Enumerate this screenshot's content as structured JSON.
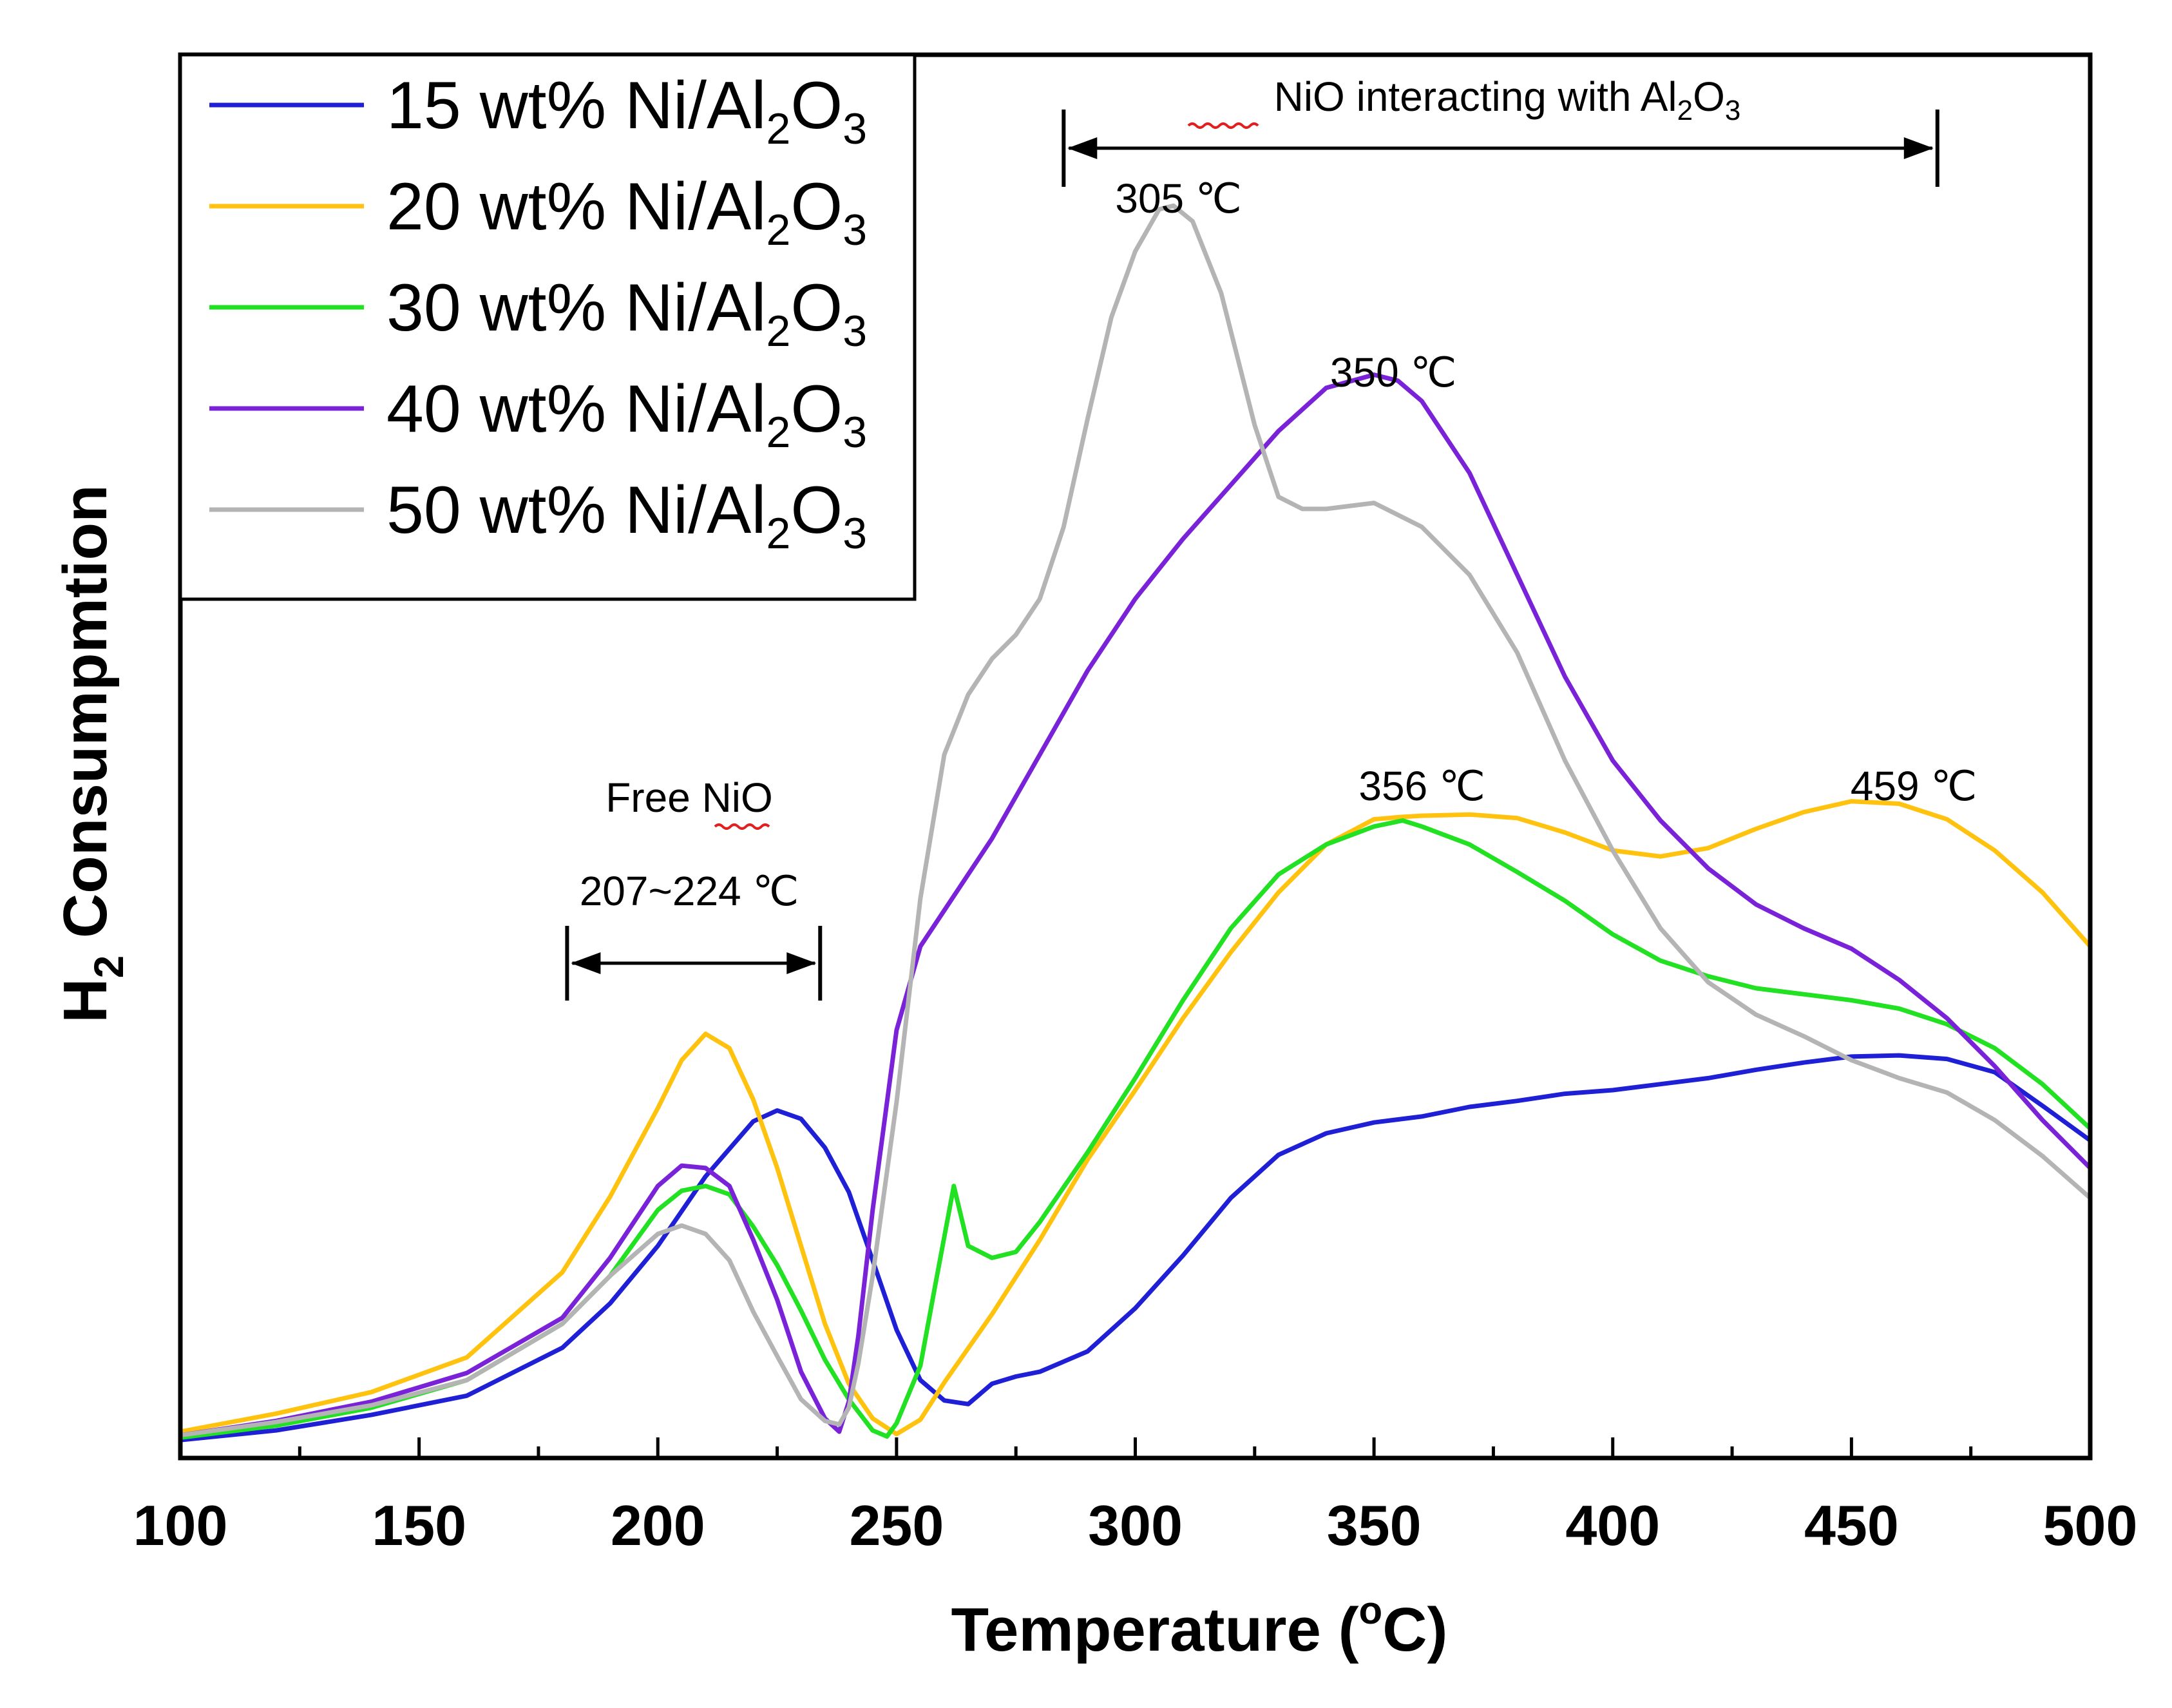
{
  "chart_data": {
    "type": "line",
    "title": "",
    "xlabel": "Temperature (°C)",
    "xlabel_parts": {
      "main": "Temperature (",
      "sup": "o",
      "tail": "C)"
    },
    "ylabel": "H2 Consumpmtion",
    "ylabel_parts": {
      "main_pre": "H",
      "sub": "2",
      "main_post": " Consumpmtion"
    },
    "xlim": [
      100,
      500
    ],
    "ylim": [
      0,
      100
    ],
    "y_ticks_shown": false,
    "x_ticks": [
      100,
      150,
      200,
      250,
      300,
      350,
      400,
      450,
      500
    ],
    "x_tick_labels": [
      "100",
      "150",
      "200",
      "250",
      "300",
      "350",
      "400",
      "450",
      "500"
    ],
    "grid": false,
    "legend_position": "top-left",
    "series": [
      {
        "name": "15 wt% Ni/Al2O3",
        "label_main": "15 wt% Ni/Al",
        "label_sub1": "2",
        "label_o": "O",
        "label_sub2": "3",
        "color": "#1f1fd6",
        "x": [
          100,
          120,
          140,
          160,
          180,
          190,
          200,
          210,
          220,
          225,
          230,
          235,
          240,
          245,
          250,
          255,
          260,
          265,
          270,
          275,
          280,
          290,
          300,
          310,
          320,
          330,
          340,
          350,
          360,
          370,
          380,
          390,
          400,
          410,
          420,
          430,
          440,
          450,
          460,
          470,
          480,
          490,
          500
        ],
        "y": [
          0.8,
          1.6,
          2.9,
          4.5,
          8.5,
          12.2,
          17.0,
          22.8,
          27.4,
          28.3,
          27.6,
          25.2,
          21.5,
          15.8,
          10.0,
          5.8,
          4.1,
          3.8,
          5.5,
          6.1,
          6.5,
          8.2,
          11.8,
          16.2,
          21.0,
          24.6,
          26.4,
          27.3,
          27.8,
          28.6,
          29.1,
          29.7,
          30.0,
          30.5,
          31.0,
          31.7,
          32.3,
          32.8,
          32.9,
          32.6,
          31.5,
          28.7,
          25.8
        ]
      },
      {
        "name": "20 wt% Ni/Al2O3",
        "label_main": "20 wt% Ni/Al",
        "label_sub1": "2",
        "label_o": "O",
        "label_sub2": "3",
        "color": "#ffc20e",
        "x": [
          100,
          120,
          140,
          160,
          180,
          190,
          200,
          205,
          210,
          215,
          220,
          225,
          230,
          235,
          240,
          245,
          250,
          255,
          260,
          270,
          280,
          290,
          300,
          310,
          320,
          330,
          340,
          350,
          356,
          360,
          370,
          380,
          390,
          400,
          410,
          420,
          430,
          440,
          450,
          460,
          470,
          480,
          490,
          500
        ],
        "y": [
          1.5,
          3.0,
          4.8,
          7.7,
          14.8,
          21.1,
          28.5,
          32.5,
          34.7,
          33.5,
          29.2,
          23.5,
          17.0,
          10.5,
          5.5,
          2.6,
          1.3,
          2.5,
          5.6,
          11.3,
          17.5,
          24.2,
          30.0,
          36.0,
          41.5,
          46.5,
          50.5,
          52.6,
          52.8,
          52.9,
          53.0,
          52.7,
          51.5,
          50.0,
          49.5,
          50.2,
          51.8,
          53.2,
          54.1,
          53.9,
          52.6,
          50.0,
          46.5,
          42.0
        ]
      },
      {
        "name": "30 wt% Ni/Al2O3",
        "label_main": "30 wt% Ni/Al",
        "label_sub1": "2",
        "label_o": "O",
        "label_sub2": "3",
        "color": "#22e022",
        "x": [
          100,
          120,
          140,
          160,
          180,
          190,
          200,
          205,
          210,
          215,
          220,
          225,
          230,
          235,
          240,
          245,
          248,
          250,
          255,
          258,
          262,
          265,
          270,
          275,
          280,
          290,
          300,
          310,
          320,
          330,
          340,
          350,
          356,
          360,
          370,
          380,
          390,
          400,
          410,
          420,
          430,
          440,
          450,
          460,
          470,
          480,
          490,
          500
        ],
        "y": [
          1.0,
          2.0,
          3.5,
          5.8,
          10.5,
          14.5,
          20.0,
          21.6,
          22.0,
          21.3,
          18.6,
          15.4,
          11.6,
          7.5,
          4.2,
          1.6,
          1.1,
          2.2,
          7.0,
          13.5,
          22.0,
          17.0,
          16.0,
          16.5,
          19.0,
          24.8,
          31.0,
          37.5,
          43.5,
          48.0,
          50.5,
          52.0,
          52.5,
          52.0,
          50.5,
          48.2,
          45.8,
          43.0,
          40.8,
          39.5,
          38.5,
          38.0,
          37.5,
          36.8,
          35.5,
          33.5,
          30.5,
          26.8
        ]
      },
      {
        "name": "40 wt% Ni/Al2O3",
        "label_main": "40 wt% Ni/Al",
        "label_sub1": "2",
        "label_o": "O",
        "label_sub2": "3",
        "color": "#7a22d8",
        "x": [
          100,
          120,
          140,
          160,
          180,
          190,
          200,
          205,
          210,
          215,
          220,
          225,
          230,
          235,
          238,
          240,
          242,
          245,
          250,
          255,
          260,
          270,
          280,
          290,
          300,
          310,
          320,
          330,
          340,
          350,
          355,
          360,
          370,
          380,
          390,
          400,
          410,
          420,
          430,
          440,
          450,
          460,
          470,
          480,
          490,
          500
        ],
        "y": [
          1.2,
          2.4,
          4.0,
          6.4,
          11.0,
          16.0,
          22.0,
          23.7,
          23.5,
          22.0,
          17.5,
          12.5,
          6.5,
          2.6,
          1.5,
          4.0,
          9.5,
          20.0,
          35.0,
          42.0,
          45.0,
          51.0,
          58.0,
          65.0,
          71.0,
          76.0,
          80.5,
          85.0,
          88.6,
          89.7,
          89.2,
          87.5,
          81.5,
          73.0,
          64.5,
          57.5,
          52.5,
          48.5,
          45.5,
          43.5,
          41.8,
          39.2,
          36.0,
          32.0,
          27.5,
          23.5
        ]
      },
      {
        "name": "50 wt% Ni/Al2O3",
        "label_main": "50 wt% Ni/Al",
        "label_sub1": "2",
        "label_o": "O",
        "label_sub2": "3",
        "color": "#b4b4b4",
        "x": [
          100,
          120,
          140,
          160,
          180,
          190,
          200,
          205,
          210,
          215,
          220,
          225,
          230,
          235,
          238,
          240,
          242,
          245,
          250,
          255,
          260,
          265,
          270,
          275,
          280,
          285,
          290,
          295,
          300,
          305,
          308,
          312,
          318,
          325,
          330,
          335,
          340,
          350,
          360,
          370,
          380,
          390,
          400,
          410,
          420,
          430,
          440,
          450,
          460,
          470,
          480,
          490,
          500
        ],
        "y": [
          1.2,
          2.3,
          3.7,
          5.8,
          10.5,
          14.5,
          18.0,
          18.7,
          18.0,
          15.8,
          11.5,
          7.8,
          4.2,
          2.4,
          2.1,
          3.5,
          7.2,
          14.5,
          29.0,
          46.0,
          58.0,
          63.0,
          66.0,
          68.0,
          71.0,
          77.0,
          86.0,
          94.5,
          100.0,
          103.5,
          103.8,
          102.5,
          96.5,
          85.5,
          79.5,
          78.5,
          78.5,
          79.0,
          77.0,
          73.0,
          66.5,
          57.5,
          50.0,
          43.5,
          39.0,
          36.3,
          34.5,
          32.5,
          31.0,
          29.8,
          27.5,
          24.5,
          21.0
        ]
      }
    ],
    "annotations": {
      "free_nio_label": "Free NiO",
      "free_nio_range": "207~224 ℃",
      "free_nio_arrow_from": 181,
      "free_nio_arrow_to": 234,
      "interacting_label_pre": "NiO interacting with Al",
      "interacting_label_sub1": "2",
      "interacting_label_o": "O",
      "interacting_label_sub2": "3",
      "interacting_arrow_from": 285,
      "interacting_arrow_to": 468,
      "peaks": [
        {
          "text": "305 ℃",
          "x": 305
        },
        {
          "text": "350 ℃",
          "x": 350
        },
        {
          "text": "356 ℃",
          "x": 356
        },
        {
          "text": "459 ℃",
          "x": 459
        }
      ]
    }
  }
}
